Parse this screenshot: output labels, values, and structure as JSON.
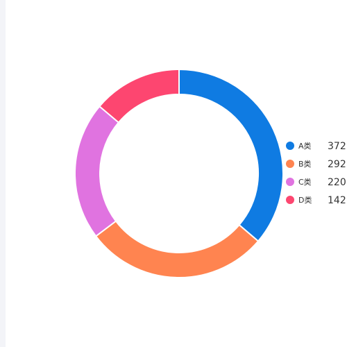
{
  "chart_data": {
    "type": "pie",
    "variant": "donut",
    "categories": [
      "A类",
      "B类",
      "C类",
      "D类"
    ],
    "values": [
      372,
      292,
      220,
      142
    ],
    "colors": [
      "#0f7be2",
      "#ff8450",
      "#e073e0",
      "#fd4670"
    ],
    "legend_position": "right"
  }
}
